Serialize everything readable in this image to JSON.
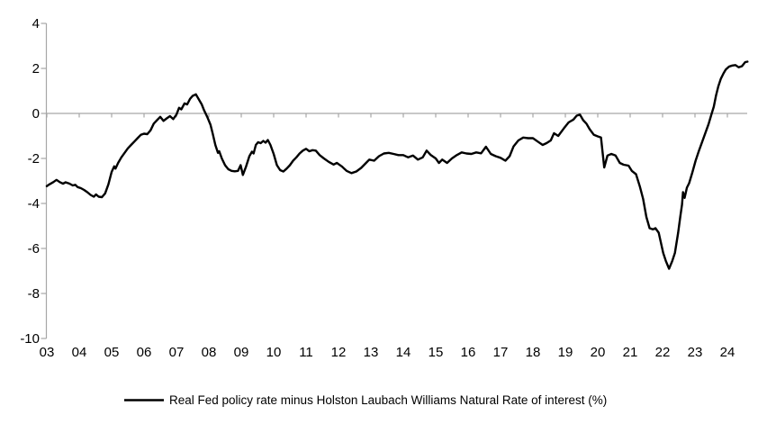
{
  "colors": {
    "background": "#ffffff",
    "data_line": "#000000",
    "axis_line": "#a6a6a6",
    "text": "#000000"
  },
  "chart_data": {
    "type": "line",
    "title": "",
    "xlabel": "",
    "ylabel": "",
    "grid": "zero-line-only",
    "legend_position": "bottom-center",
    "xlim": [
      2003.0,
      2024.75
    ],
    "ylim": [
      -10,
      4
    ],
    "y_ticks": [
      4,
      2,
      0,
      -2,
      -4,
      -6,
      -8,
      -10
    ],
    "y_tick_labels": [
      "4",
      "2",
      "0",
      "-2",
      "-4",
      "-6",
      "-8",
      "-10"
    ],
    "x_tick_years": [
      2003,
      2004,
      2005,
      2006,
      2007,
      2008,
      2009,
      2010,
      2011,
      2012,
      2013,
      2014,
      2015,
      2016,
      2017,
      2018,
      2019,
      2020,
      2021,
      2022,
      2023,
      2024
    ],
    "x_tick_labels": [
      "03",
      "04",
      "05",
      "06",
      "07",
      "08",
      "09",
      "10",
      "11",
      "12",
      "13",
      "14",
      "15",
      "16",
      "17",
      "18",
      "19",
      "20",
      "21",
      "22",
      "23",
      "24"
    ],
    "series": [
      {
        "name": "Real Fed policy rate minus Holston Laubach Williams Natural Rate of interest (%)",
        "color": "#000000",
        "points": [
          [
            2003.0,
            -3.23
          ],
          [
            2003.08,
            -3.15
          ],
          [
            2003.2,
            -3.05
          ],
          [
            2003.3,
            -2.95
          ],
          [
            2003.4,
            -3.05
          ],
          [
            2003.5,
            -3.12
          ],
          [
            2003.58,
            -3.06
          ],
          [
            2003.7,
            -3.12
          ],
          [
            2003.8,
            -3.2
          ],
          [
            2003.88,
            -3.17
          ],
          [
            2003.95,
            -3.27
          ],
          [
            2004.05,
            -3.32
          ],
          [
            2004.15,
            -3.4
          ],
          [
            2004.25,
            -3.5
          ],
          [
            2004.35,
            -3.62
          ],
          [
            2004.45,
            -3.7
          ],
          [
            2004.52,
            -3.6
          ],
          [
            2004.6,
            -3.7
          ],
          [
            2004.7,
            -3.72
          ],
          [
            2004.8,
            -3.55
          ],
          [
            2004.9,
            -3.15
          ],
          [
            2005.0,
            -2.6
          ],
          [
            2005.08,
            -2.35
          ],
          [
            2005.12,
            -2.45
          ],
          [
            2005.2,
            -2.2
          ],
          [
            2005.3,
            -1.95
          ],
          [
            2005.4,
            -1.75
          ],
          [
            2005.5,
            -1.55
          ],
          [
            2005.6,
            -1.4
          ],
          [
            2005.7,
            -1.25
          ],
          [
            2005.8,
            -1.1
          ],
          [
            2005.9,
            -0.95
          ],
          [
            2006.0,
            -0.9
          ],
          [
            2006.1,
            -0.92
          ],
          [
            2006.2,
            -0.75
          ],
          [
            2006.3,
            -0.45
          ],
          [
            2006.4,
            -0.3
          ],
          [
            2006.5,
            -0.15
          ],
          [
            2006.6,
            -0.33
          ],
          [
            2006.7,
            -0.22
          ],
          [
            2006.8,
            -0.12
          ],
          [
            2006.9,
            -0.25
          ],
          [
            2007.0,
            -0.05
          ],
          [
            2007.08,
            0.25
          ],
          [
            2007.15,
            0.18
          ],
          [
            2007.25,
            0.45
          ],
          [
            2007.33,
            0.4
          ],
          [
            2007.42,
            0.65
          ],
          [
            2007.5,
            0.78
          ],
          [
            2007.6,
            0.85
          ],
          [
            2007.7,
            0.6
          ],
          [
            2007.78,
            0.4
          ],
          [
            2007.85,
            0.15
          ],
          [
            2007.95,
            -0.15
          ],
          [
            2008.05,
            -0.5
          ],
          [
            2008.12,
            -0.9
          ],
          [
            2008.2,
            -1.4
          ],
          [
            2008.28,
            -1.75
          ],
          [
            2008.32,
            -1.68
          ],
          [
            2008.4,
            -2.0
          ],
          [
            2008.5,
            -2.3
          ],
          [
            2008.6,
            -2.48
          ],
          [
            2008.7,
            -2.55
          ],
          [
            2008.8,
            -2.57
          ],
          [
            2008.9,
            -2.55
          ],
          [
            2008.98,
            -2.3
          ],
          [
            2009.05,
            -2.73
          ],
          [
            2009.15,
            -2.35
          ],
          [
            2009.25,
            -1.9
          ],
          [
            2009.33,
            -1.7
          ],
          [
            2009.38,
            -1.78
          ],
          [
            2009.45,
            -1.4
          ],
          [
            2009.52,
            -1.28
          ],
          [
            2009.6,
            -1.32
          ],
          [
            2009.68,
            -1.22
          ],
          [
            2009.75,
            -1.3
          ],
          [
            2009.82,
            -1.18
          ],
          [
            2009.9,
            -1.4
          ],
          [
            2010.0,
            -1.8
          ],
          [
            2010.1,
            -2.3
          ],
          [
            2010.2,
            -2.52
          ],
          [
            2010.3,
            -2.58
          ],
          [
            2010.4,
            -2.45
          ],
          [
            2010.5,
            -2.3
          ],
          [
            2010.6,
            -2.1
          ],
          [
            2010.7,
            -1.95
          ],
          [
            2010.8,
            -1.78
          ],
          [
            2010.9,
            -1.65
          ],
          [
            2011.0,
            -1.57
          ],
          [
            2011.1,
            -1.68
          ],
          [
            2011.2,
            -1.63
          ],
          [
            2011.3,
            -1.65
          ],
          [
            2011.42,
            -1.85
          ],
          [
            2011.55,
            -2.0
          ],
          [
            2011.7,
            -2.15
          ],
          [
            2011.85,
            -2.27
          ],
          [
            2011.95,
            -2.2
          ],
          [
            2012.1,
            -2.35
          ],
          [
            2012.25,
            -2.55
          ],
          [
            2012.4,
            -2.65
          ],
          [
            2012.55,
            -2.58
          ],
          [
            2012.7,
            -2.42
          ],
          [
            2012.85,
            -2.2
          ],
          [
            2012.95,
            -2.05
          ],
          [
            2013.1,
            -2.1
          ],
          [
            2013.25,
            -1.9
          ],
          [
            2013.4,
            -1.78
          ],
          [
            2013.55,
            -1.75
          ],
          [
            2013.7,
            -1.8
          ],
          [
            2013.85,
            -1.85
          ],
          [
            2014.0,
            -1.85
          ],
          [
            2014.15,
            -1.95
          ],
          [
            2014.3,
            -1.87
          ],
          [
            2014.45,
            -2.05
          ],
          [
            2014.6,
            -1.95
          ],
          [
            2014.72,
            -1.65
          ],
          [
            2014.85,
            -1.85
          ],
          [
            2015.0,
            -2.0
          ],
          [
            2015.1,
            -2.2
          ],
          [
            2015.2,
            -2.05
          ],
          [
            2015.35,
            -2.2
          ],
          [
            2015.5,
            -2.0
          ],
          [
            2015.65,
            -1.85
          ],
          [
            2015.8,
            -1.73
          ],
          [
            2015.95,
            -1.78
          ],
          [
            2016.1,
            -1.8
          ],
          [
            2016.25,
            -1.73
          ],
          [
            2016.4,
            -1.77
          ],
          [
            2016.55,
            -1.48
          ],
          [
            2016.7,
            -1.8
          ],
          [
            2016.85,
            -1.9
          ],
          [
            2017.0,
            -1.97
          ],
          [
            2017.15,
            -2.1
          ],
          [
            2017.28,
            -1.9
          ],
          [
            2017.4,
            -1.47
          ],
          [
            2017.55,
            -1.2
          ],
          [
            2017.7,
            -1.07
          ],
          [
            2017.85,
            -1.1
          ],
          [
            2018.0,
            -1.1
          ],
          [
            2018.15,
            -1.25
          ],
          [
            2018.3,
            -1.4
          ],
          [
            2018.42,
            -1.32
          ],
          [
            2018.55,
            -1.2
          ],
          [
            2018.65,
            -0.88
          ],
          [
            2018.78,
            -1.0
          ],
          [
            2018.95,
            -0.67
          ],
          [
            2019.1,
            -0.4
          ],
          [
            2019.25,
            -0.27
          ],
          [
            2019.35,
            -0.1
          ],
          [
            2019.45,
            -0.05
          ],
          [
            2019.55,
            -0.3
          ],
          [
            2019.65,
            -0.45
          ],
          [
            2019.75,
            -0.7
          ],
          [
            2019.88,
            -0.95
          ],
          [
            2020.0,
            -1.02
          ],
          [
            2020.1,
            -1.07
          ],
          [
            2020.2,
            -2.4
          ],
          [
            2020.3,
            -1.87
          ],
          [
            2020.42,
            -1.8
          ],
          [
            2020.55,
            -1.87
          ],
          [
            2020.68,
            -2.2
          ],
          [
            2020.8,
            -2.28
          ],
          [
            2020.95,
            -2.32
          ],
          [
            2021.05,
            -2.55
          ],
          [
            2021.18,
            -2.7
          ],
          [
            2021.3,
            -3.25
          ],
          [
            2021.4,
            -3.8
          ],
          [
            2021.5,
            -4.6
          ],
          [
            2021.6,
            -5.1
          ],
          [
            2021.7,
            -5.15
          ],
          [
            2021.78,
            -5.1
          ],
          [
            2021.88,
            -5.3
          ],
          [
            2021.95,
            -5.75
          ],
          [
            2022.02,
            -6.2
          ],
          [
            2022.1,
            -6.55
          ],
          [
            2022.2,
            -6.9
          ],
          [
            2022.3,
            -6.55
          ],
          [
            2022.38,
            -6.2
          ],
          [
            2022.48,
            -5.3
          ],
          [
            2022.55,
            -4.55
          ],
          [
            2022.6,
            -4.05
          ],
          [
            2022.63,
            -3.5
          ],
          [
            2022.68,
            -3.75
          ],
          [
            2022.75,
            -3.3
          ],
          [
            2022.82,
            -3.1
          ],
          [
            2022.92,
            -2.62
          ],
          [
            2023.02,
            -2.1
          ],
          [
            2023.12,
            -1.67
          ],
          [
            2023.22,
            -1.27
          ],
          [
            2023.32,
            -0.87
          ],
          [
            2023.42,
            -0.47
          ],
          [
            2023.5,
            -0.08
          ],
          [
            2023.58,
            0.3
          ],
          [
            2023.65,
            0.8
          ],
          [
            2023.72,
            1.2
          ],
          [
            2023.8,
            1.55
          ],
          [
            2023.88,
            1.78
          ],
          [
            2023.95,
            1.95
          ],
          [
            2024.05,
            2.08
          ],
          [
            2024.15,
            2.13
          ],
          [
            2024.25,
            2.15
          ],
          [
            2024.35,
            2.05
          ],
          [
            2024.45,
            2.1
          ],
          [
            2024.55,
            2.28
          ],
          [
            2024.62,
            2.3
          ]
        ]
      }
    ]
  }
}
